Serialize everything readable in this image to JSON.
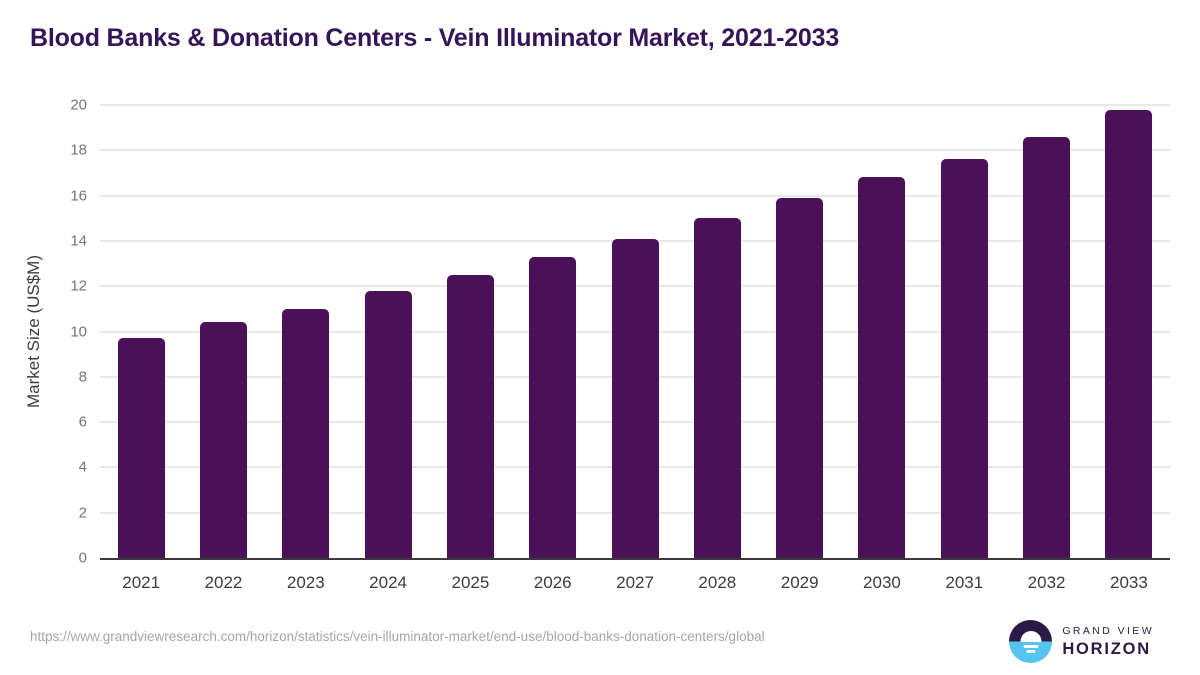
{
  "title": "Blood Banks & Donation Centers - Vein Illuminator Market, 2021-2033",
  "chart_data": {
    "type": "bar",
    "categories": [
      "2021",
      "2022",
      "2023",
      "2024",
      "2025",
      "2026",
      "2027",
      "2028",
      "2029",
      "2030",
      "2031",
      "2032",
      "2033"
    ],
    "values": [
      9.7,
      10.4,
      11.0,
      11.8,
      12.5,
      13.3,
      14.1,
      15.0,
      15.9,
      16.8,
      17.6,
      18.6,
      19.8
    ],
    "title": "Blood Banks & Donation Centers - Vein Illuminator Market, 2021-2033",
    "xlabel": "",
    "ylabel": "Market Size (US$M)",
    "ylim": [
      0,
      20
    ],
    "yticks": [
      0,
      2,
      4,
      6,
      8,
      10,
      12,
      14,
      16,
      18,
      20
    ],
    "grid": true,
    "legend": false,
    "bar_color": "#4a1158"
  },
  "footer": {
    "source_url": "https://www.grandviewresearch.com/horizon/statistics/vein-illuminator-market/end-use/blood-banks-donation-centers/global",
    "logo_line1": "GRAND VIEW",
    "logo_line2": "HORIZON"
  },
  "colors": {
    "title_text": "#351457",
    "bar": "#4a1158",
    "gridline": "#e8e8e8",
    "axis_line": "#3a3a3a",
    "y_tick_label": "#757575",
    "x_tick_label": "#3c3c3c",
    "source_url_text": "#a6a6a6",
    "logo_dark": "#2b1a45",
    "logo_blue": "#55c4f0"
  }
}
